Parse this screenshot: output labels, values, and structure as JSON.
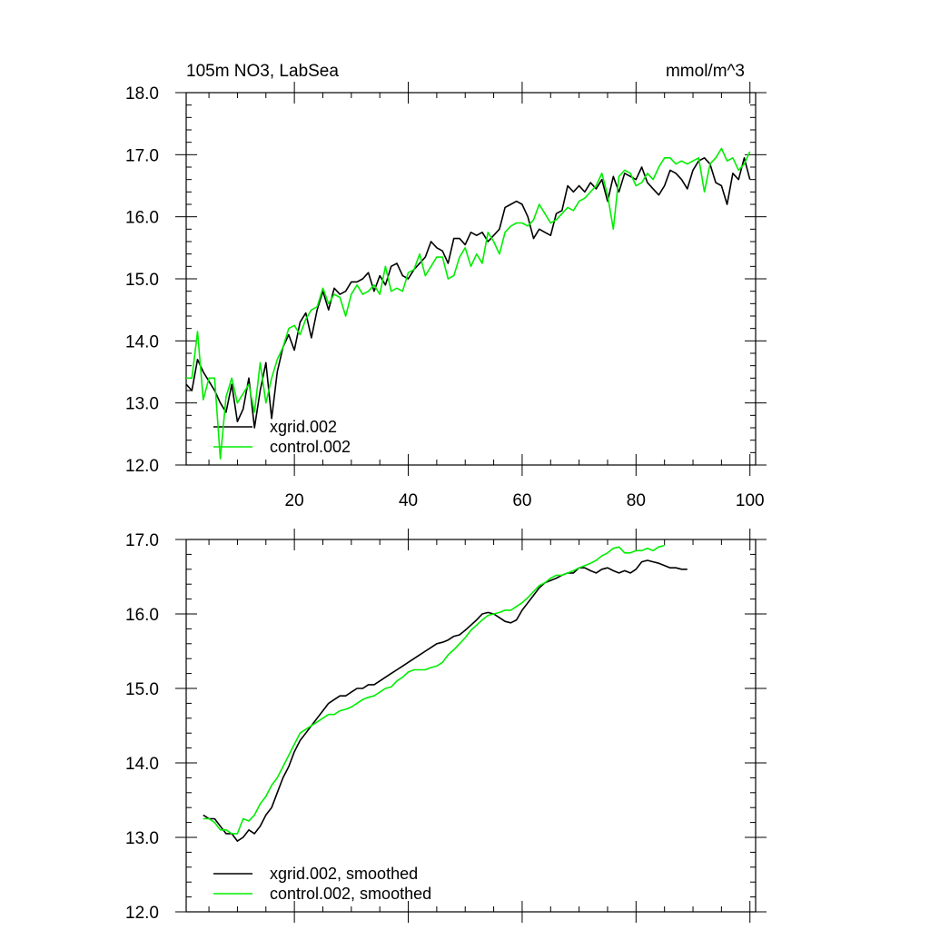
{
  "colors": {
    "xgrid": "#000000",
    "control": "#00ee00",
    "axis": "#000000"
  },
  "chart_data": [
    {
      "type": "line",
      "title": "105m NO3, LabSea",
      "units": "mmol/m^3",
      "xlabel": "",
      "ylabel": "",
      "xlim": [
        1,
        101
      ],
      "ylim": [
        12.0,
        18.0
      ],
      "xticks": [
        20,
        40,
        60,
        80,
        100
      ],
      "xtick_labels": [
        "20",
        "40",
        "60",
        "80",
        "100"
      ],
      "yticks": [
        12.0,
        13.0,
        14.0,
        15.0,
        16.0,
        17.0,
        18.0
      ],
      "ytick_labels": [
        "12.0",
        "13.0",
        "14.0",
        "15.0",
        "16.0",
        "17.0",
        "18.0"
      ],
      "grid": false,
      "legend": "bottom-left",
      "x_start": 1,
      "series": [
        {
          "name": "xgrid.002",
          "color": "#000000",
          "values": [
            13.3,
            13.2,
            13.7,
            13.5,
            13.35,
            13.2,
            13.0,
            12.85,
            13.3,
            12.7,
            12.9,
            13.4,
            12.6,
            13.2,
            13.65,
            12.75,
            13.5,
            13.9,
            14.1,
            13.85,
            14.3,
            14.45,
            14.05,
            14.5,
            14.8,
            14.5,
            14.85,
            14.75,
            14.8,
            14.95,
            14.95,
            15.0,
            15.1,
            14.8,
            15.05,
            14.9,
            15.2,
            15.25,
            15.05,
            15.0,
            15.15,
            15.25,
            15.35,
            15.6,
            15.5,
            15.45,
            15.25,
            15.65,
            15.65,
            15.55,
            15.75,
            15.7,
            15.75,
            15.6,
            15.7,
            15.8,
            16.15,
            16.2,
            16.25,
            16.2,
            16.0,
            15.65,
            15.8,
            15.75,
            15.7,
            16.05,
            16.1,
            16.5,
            16.4,
            16.5,
            16.4,
            16.55,
            16.45,
            16.6,
            16.25,
            16.65,
            16.4,
            16.7,
            16.65,
            16.6,
            16.8,
            16.55,
            16.45,
            16.35,
            16.5,
            16.75,
            16.7,
            16.6,
            16.45,
            16.75,
            16.9,
            16.95,
            16.85,
            16.55,
            16.5,
            16.2,
            16.7,
            16.6,
            16.95,
            16.6
          ],
          "smoothed": false
        },
        {
          "name": "control.002",
          "color": "#00ee00",
          "values": [
            13.4,
            13.4,
            14.15,
            13.05,
            13.4,
            13.4,
            12.1,
            13.1,
            13.4,
            13.0,
            13.15,
            13.3,
            12.85,
            13.65,
            13.0,
            13.4,
            13.7,
            13.9,
            14.2,
            14.25,
            14.1,
            14.35,
            14.5,
            14.55,
            14.85,
            14.6,
            14.75,
            14.7,
            14.4,
            14.75,
            14.9,
            14.75,
            14.8,
            14.9,
            14.75,
            15.2,
            14.8,
            14.85,
            14.8,
            15.1,
            15.15,
            15.4,
            15.05,
            15.2,
            15.35,
            15.35,
            15.0,
            15.05,
            15.35,
            15.5,
            15.2,
            15.4,
            15.25,
            15.75,
            15.6,
            15.4,
            15.75,
            15.85,
            15.9,
            15.9,
            15.85,
            15.95,
            16.2,
            16.05,
            15.9,
            15.95,
            16.05,
            16.15,
            16.1,
            16.25,
            16.3,
            16.4,
            16.5,
            16.7,
            16.35,
            15.8,
            16.65,
            16.75,
            16.7,
            16.5,
            16.55,
            16.7,
            16.6,
            16.8,
            16.95,
            16.95,
            16.85,
            16.9,
            16.85,
            16.9,
            16.95,
            16.4,
            16.85,
            16.95,
            17.1,
            16.9,
            16.95,
            16.75,
            16.85,
            17.05
          ],
          "smoothed": false
        }
      ]
    },
    {
      "type": "line",
      "title": "",
      "xlabel": "",
      "ylabel": "",
      "xlim": [
        1,
        101
      ],
      "ylim": [
        12.0,
        17.0
      ],
      "xticks": [
        20,
        40,
        60,
        80,
        100
      ],
      "xtick_labels": [],
      "yticks": [
        12.0,
        13.0,
        14.0,
        15.0,
        16.0,
        17.0
      ],
      "ytick_labels": [
        "12.0",
        "13.0",
        "14.0",
        "15.0",
        "16.0",
        "17.0"
      ],
      "grid": false,
      "legend": "bottom-left",
      "x_start": 4,
      "series": [
        {
          "name": "xgrid.002, smoothed",
          "color": "#000000",
          "values": [
            13.3,
            13.25,
            13.25,
            13.15,
            13.05,
            13.05,
            12.95,
            13.0,
            13.1,
            13.05,
            13.15,
            13.3,
            13.4,
            13.6,
            13.8,
            13.95,
            14.15,
            14.3,
            14.4,
            14.5,
            14.6,
            14.7,
            14.8,
            14.85,
            14.9,
            14.9,
            14.95,
            15.0,
            15.0,
            15.05,
            15.05,
            15.1,
            15.15,
            15.2,
            15.25,
            15.3,
            15.35,
            15.4,
            15.45,
            15.5,
            15.55,
            15.6,
            15.62,
            15.65,
            15.7,
            15.72,
            15.78,
            15.85,
            15.92,
            16.0,
            16.02,
            16.0,
            15.95,
            15.9,
            15.88,
            15.92,
            16.05,
            16.15,
            16.25,
            16.35,
            16.42,
            16.45,
            16.48,
            16.52,
            16.55,
            16.55,
            16.62,
            16.62,
            16.58,
            16.55,
            16.6,
            16.62,
            16.58,
            16.55,
            16.58,
            16.55,
            16.6,
            16.7,
            16.72,
            16.7,
            16.68,
            16.65,
            16.62,
            16.62,
            16.6,
            16.6
          ],
          "smoothed": true
        },
        {
          "name": "control.002, smoothed",
          "color": "#00ee00",
          "values": [
            13.25,
            13.25,
            13.2,
            13.1,
            13.1,
            13.05,
            13.05,
            13.25,
            13.22,
            13.3,
            13.45,
            13.55,
            13.7,
            13.8,
            13.95,
            14.1,
            14.25,
            14.4,
            14.45,
            14.5,
            14.55,
            14.6,
            14.65,
            14.65,
            14.7,
            14.72,
            14.75,
            14.8,
            14.85,
            14.88,
            14.9,
            14.95,
            15.0,
            15.02,
            15.1,
            15.15,
            15.22,
            15.25,
            15.25,
            15.25,
            15.28,
            15.3,
            15.35,
            15.45,
            15.52,
            15.6,
            15.68,
            15.78,
            15.85,
            15.92,
            15.98,
            16.0,
            16.02,
            16.05,
            16.05,
            16.1,
            16.15,
            16.22,
            16.3,
            16.38,
            16.42,
            16.48,
            16.52,
            16.52,
            16.55,
            16.58,
            16.62,
            16.65,
            16.68,
            16.72,
            16.78,
            16.82,
            16.88,
            16.9,
            16.82,
            16.82,
            16.85,
            16.85,
            16.88,
            16.85,
            16.9,
            16.92
          ],
          "smoothed": true
        }
      ]
    }
  ]
}
